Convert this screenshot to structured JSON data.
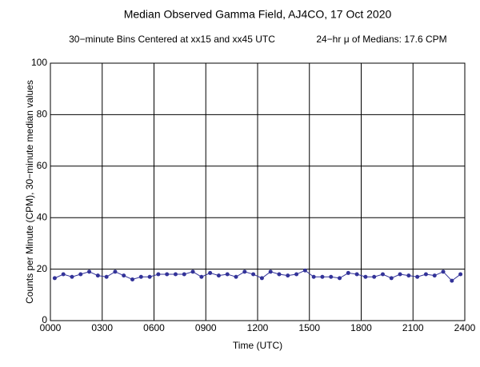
{
  "chart_data": {
    "type": "line",
    "title": "Median Observed Gamma Field, AJ4CO, 17 Oct 2020",
    "subtitle": "30−minute Bins Centered at xx15 and xx45 UTC",
    "annotation": "24−hr μ of Medians: 17.6 CPM",
    "x_label": "Time (UTC)",
    "y_label": "Counts per Minute (CPM), 30−minute median values",
    "x": [
      0.25,
      0.75,
      1.25,
      1.75,
      2.25,
      2.75,
      3.25,
      3.75,
      4.25,
      4.75,
      5.25,
      5.75,
      6.25,
      6.75,
      7.25,
      7.75,
      8.25,
      8.75,
      9.25,
      9.75,
      10.25,
      10.75,
      11.25,
      11.75,
      12.25,
      12.75,
      13.25,
      13.75,
      14.25,
      14.75,
      15.25,
      15.75,
      16.25,
      16.75,
      17.25,
      17.75,
      18.25,
      18.75,
      19.25,
      19.75,
      20.25,
      20.75,
      21.25,
      21.75,
      22.25,
      22.75,
      23.25,
      23.75
    ],
    "series": [
      {
        "color": "#333399",
        "values": [
          16.5,
          18,
          17,
          18,
          19,
          17.5,
          17,
          19,
          17.5,
          16,
          17,
          17,
          18,
          18,
          18,
          18,
          19,
          17,
          18.5,
          17.5,
          18,
          17,
          19,
          18,
          16.5,
          19,
          18,
          17.5,
          18,
          19.5,
          17,
          17,
          17,
          16.5,
          18.5,
          18,
          17,
          17,
          18,
          16.5,
          18,
          17.5,
          17,
          18,
          17.5,
          19,
          15.5,
          18
        ]
      }
    ],
    "xlim": [
      0,
      24
    ],
    "ylim": [
      0,
      100
    ],
    "xticks": [
      {
        "value": 0,
        "label": "0000"
      },
      {
        "value": 3,
        "label": "0300"
      },
      {
        "value": 6,
        "label": "0600"
      },
      {
        "value": 9,
        "label": "0900"
      },
      {
        "value": 12,
        "label": "1200"
      },
      {
        "value": 15,
        "label": "1500"
      },
      {
        "value": 18,
        "label": "1800"
      },
      {
        "value": 21,
        "label": "2100"
      },
      {
        "value": 24,
        "label": "2400"
      }
    ],
    "yticks": [
      0,
      20,
      40,
      60,
      80,
      100
    ],
    "grid": true
  }
}
